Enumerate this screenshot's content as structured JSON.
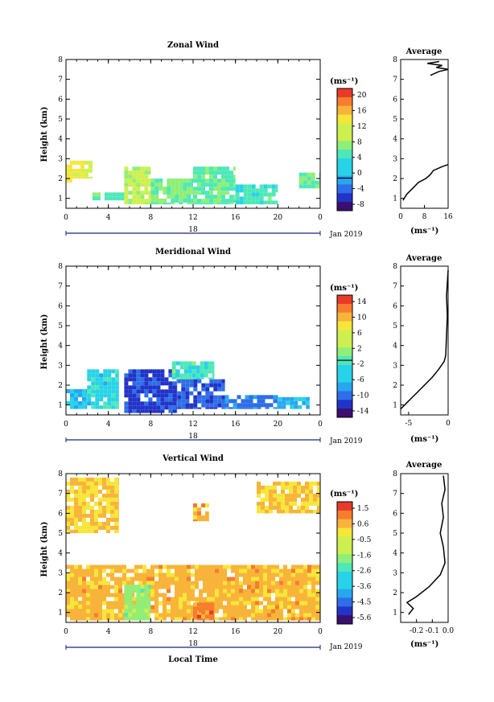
{
  "figure": {
    "footer_xlabel": "Local Time",
    "date_label": "Jan 2019",
    "day_label": "18",
    "avg_title": "Average",
    "unit_label": "(ms⁻¹)",
    "unit_x_label": "(ms⁻¹)"
  },
  "chart_data": [
    {
      "type": "heatmap",
      "title": "Zonal Wind",
      "ylabel": "Height (km)",
      "xlim": [
        0,
        24
      ],
      "ylim": [
        0.5,
        8
      ],
      "xticks": [
        "0",
        "4",
        "8",
        "12",
        "16",
        "20",
        "0"
      ],
      "yticks": [
        "1",
        "2",
        "3",
        "4",
        "5",
        "6",
        "7",
        "8"
      ],
      "colorbar": {
        "vmin": -8,
        "vmax": 22,
        "ticks": [
          "20",
          "16",
          "12",
          "8",
          "4",
          "0",
          "-4",
          "-8"
        ],
        "zero_line": 0
      },
      "regions": [
        {
          "x0": 0.0,
          "x1": 0.6,
          "y0": 1.8,
          "y1": 2.9,
          "value": 13
        },
        {
          "x0": 0.6,
          "x1": 2.5,
          "y0": 2.0,
          "y1": 2.9,
          "value": 12
        },
        {
          "x0": 2.5,
          "x1": 5.5,
          "y0": 0.9,
          "y1": 1.3,
          "value": 6
        },
        {
          "x0": 5.5,
          "x1": 8.0,
          "y0": 0.7,
          "y1": 2.6,
          "value": 10
        },
        {
          "x0": 8.0,
          "x1": 12.0,
          "y0": 0.7,
          "y1": 2.0,
          "value": 7
        },
        {
          "x0": 12.0,
          "x1": 16.0,
          "y0": 0.7,
          "y1": 2.6,
          "value": 6
        },
        {
          "x0": 16.0,
          "x1": 20.0,
          "y0": 0.7,
          "y1": 1.7,
          "value": 5
        },
        {
          "x0": 22.0,
          "x1": 24.0,
          "y0": 1.5,
          "y1": 2.3,
          "value": 7
        }
      ],
      "profile": {
        "xlim": [
          0,
          16
        ],
        "xticks": [
          "0",
          "8",
          "16"
        ],
        "x": [
          0.8,
          2.0,
          4.0,
          6.0,
          8.5,
          10.0,
          11.0,
          14.0,
          16.0,
          10.0,
          13.0,
          16.0,
          12.0,
          14.0,
          9.0,
          13.0
        ],
        "y": [
          0.9,
          1.2,
          1.5,
          1.8,
          2.0,
          2.2,
          2.4,
          2.6,
          2.7,
          7.2,
          7.4,
          7.5,
          7.6,
          7.7,
          7.8,
          7.9
        ]
      }
    },
    {
      "type": "heatmap",
      "title": "Meridional Wind",
      "ylabel": "Height (km)",
      "xlim": [
        0,
        24
      ],
      "ylim": [
        0.5,
        8
      ],
      "xticks": [
        "0",
        "4",
        "8",
        "12",
        "16",
        "20",
        "0"
      ],
      "yticks": [
        "1",
        "2",
        "3",
        "4",
        "5",
        "6",
        "7",
        "8"
      ],
      "colorbar": {
        "vmin": -14,
        "vmax": 16,
        "ticks": [
          "14",
          "10",
          "6",
          "2",
          "-2",
          "-6",
          "-10",
          "-14"
        ],
        "zero_line": 0
      },
      "regions": [
        {
          "x0": 0.0,
          "x1": 2.0,
          "y0": 0.8,
          "y1": 1.8,
          "value": -4
        },
        {
          "x0": 2.0,
          "x1": 5.0,
          "y0": 0.8,
          "y1": 2.8,
          "value": -3
        },
        {
          "x0": 5.5,
          "x1": 10.5,
          "y0": 0.6,
          "y1": 2.8,
          "value": -11
        },
        {
          "x0": 10.5,
          "x1": 15.0,
          "y0": 0.8,
          "y1": 2.3,
          "value": -10
        },
        {
          "x0": 15.0,
          "x1": 20.0,
          "y0": 0.8,
          "y1": 1.5,
          "value": -8
        },
        {
          "x0": 20.0,
          "x1": 23.0,
          "y0": 0.8,
          "y1": 1.4,
          "value": -5
        },
        {
          "x0": 10.0,
          "x1": 14.0,
          "y0": 2.3,
          "y1": 3.2,
          "value": -1
        }
      ],
      "profile": {
        "xlim": [
          -6,
          0
        ],
        "xticks": [
          "-5",
          "0"
        ],
        "x": [
          -6.0,
          -5.0,
          -4.0,
          -3.0,
          -2.0,
          -1.2,
          -0.5,
          -0.3,
          -0.2,
          -0.1,
          -0.2,
          0.0
        ],
        "y": [
          0.8,
          1.2,
          1.6,
          2.0,
          2.4,
          2.8,
          3.2,
          3.5,
          4.5,
          5.5,
          6.5,
          7.8
        ]
      }
    },
    {
      "type": "heatmap",
      "title": "Vertical Wind",
      "xlabel": "Local Time",
      "ylabel": "Height (km)",
      "xlim": [
        0,
        24
      ],
      "ylim": [
        0.5,
        8
      ],
      "xticks": [
        "0",
        "4",
        "8",
        "12",
        "16",
        "20",
        "0"
      ],
      "yticks": [
        "1",
        "2",
        "3",
        "4",
        "5",
        "6",
        "7",
        "8"
      ],
      "colorbar": {
        "vmin": -6,
        "vmax": 2,
        "ticks": [
          "1.5",
          "0.6",
          "-0.5",
          "-1.6",
          "-2.6",
          "-3.6",
          "-4.5",
          "-5.6"
        ]
      },
      "regions": [
        {
          "x0": 0.0,
          "x1": 3.0,
          "y0": 0.6,
          "y1": 1.6,
          "value": 0.3
        },
        {
          "x0": 0.0,
          "x1": 24.0,
          "y0": 0.6,
          "y1": 3.4,
          "value": 0.4
        },
        {
          "x0": 5.5,
          "x1": 8.0,
          "y0": 0.6,
          "y1": 2.4,
          "value": -1.6
        },
        {
          "x0": 12.0,
          "x1": 14.0,
          "y0": 0.6,
          "y1": 1.5,
          "value": 1.1
        },
        {
          "x0": 0.0,
          "x1": 5.0,
          "y0": 5.0,
          "y1": 7.8,
          "value": 0.1
        },
        {
          "x0": 12.0,
          "x1": 13.5,
          "y0": 5.6,
          "y1": 6.5,
          "value": 0.5
        },
        {
          "x0": 18.0,
          "x1": 24.0,
          "y0": 6.0,
          "y1": 7.6,
          "value": 0.2
        }
      ],
      "profile": {
        "xlim": [
          -0.3,
          0.0
        ],
        "xticks": [
          "-0.2",
          "-0.1",
          "0.0"
        ],
        "x": [
          -0.25,
          -0.22,
          -0.26,
          -0.2,
          -0.12,
          -0.05,
          -0.02,
          -0.03,
          -0.05,
          -0.03,
          -0.04,
          -0.02,
          -0.03
        ],
        "y": [
          0.9,
          1.2,
          1.5,
          1.8,
          2.3,
          2.9,
          3.5,
          4.3,
          5.0,
          5.8,
          6.5,
          7.2,
          7.9
        ]
      }
    }
  ]
}
